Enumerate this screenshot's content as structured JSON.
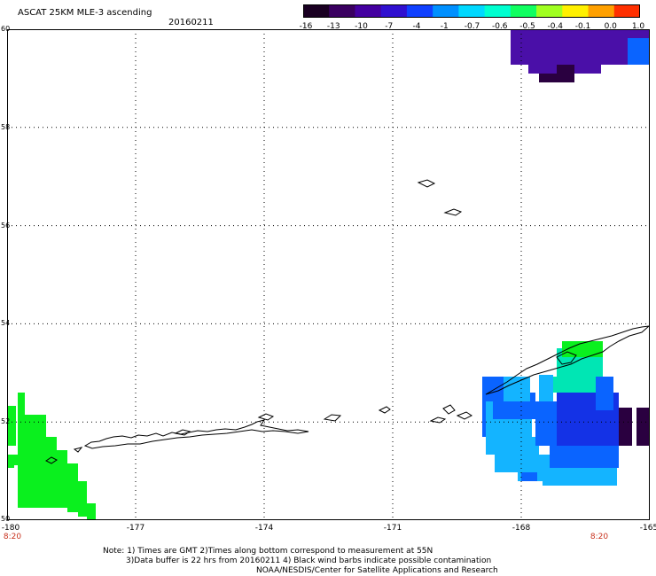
{
  "header": {
    "title": "ASCAT 25KM MLE-3 ascending",
    "date": "20160211"
  },
  "colorbar": {
    "labels": [
      "-16",
      "-13",
      "-10",
      "-7",
      "-4",
      "-1",
      "-0.7",
      "-0.6",
      "-0.5",
      "-0.4",
      "-0.1",
      "0.0",
      "1.0"
    ],
    "colors": [
      "#1a0022",
      "#3a0060",
      "#4400a0",
      "#3010d0",
      "#1040ff",
      "#0090ff",
      "#00d8ff",
      "#00ffd0",
      "#10ff60",
      "#a0ff20",
      "#fff000",
      "#ffa000",
      "#ff3000"
    ]
  },
  "axes": {
    "x_labels": [
      "-180",
      "-177",
      "-174",
      "-171",
      "-168",
      "-165"
    ],
    "y_labels": [
      "60",
      "58",
      "56",
      "54",
      "52",
      "50"
    ],
    "time_left": "8:20",
    "time_right": "8:20"
  },
  "notes": {
    "line1": "Note: 1) Times are GMT 2)Times along bottom correspond to measurement at 55N",
    "line2": "3)Data buffer is 22 hrs from 20160211 4) Black wind barbs indicate possible contamination",
    "line3": "NOAA/NESDIS/Center for Satellite Applications and Research"
  },
  "map_colors": {
    "green": "#0af01e",
    "purple": "#4a0fa8",
    "dark": "#2a0040",
    "blue": "#0a64ff",
    "cyan": "#14b4ff",
    "deep_blue": "#1432e6",
    "teal": "#00e6b4"
  }
}
